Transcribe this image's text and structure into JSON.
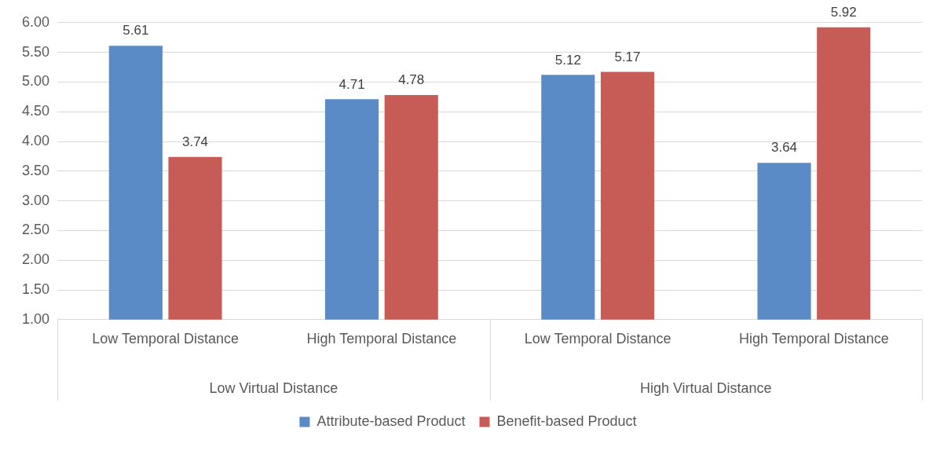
{
  "chart_data": {
    "type": "bar",
    "categories": [
      "Low Temporal Distance",
      "High Temporal Distance",
      "Low Temporal Distance",
      "High Temporal Distance"
    ],
    "annotations": [
      "Low Virtual Distance",
      "High Virtual Distance"
    ],
    "series": [
      {
        "name": "Attribute-based Product",
        "color": "#5b8bc6",
        "values": [
          5.61,
          4.71,
          5.12,
          3.64
        ]
      },
      {
        "name": "Benefit-based Product",
        "color": "#c75b56",
        "values": [
          3.74,
          4.78,
          5.17,
          5.92
        ]
      }
    ],
    "ylim": [
      1,
      6
    ],
    "yticks": [
      {
        "value": 1,
        "label": "1.00"
      },
      {
        "value": 1.5,
        "label": "1.50"
      },
      {
        "value": 2,
        "label": "2.00"
      },
      {
        "value": 2.5,
        "label": "2.50"
      },
      {
        "value": 3,
        "label": "3.00"
      },
      {
        "value": 3.5,
        "label": "3.50"
      },
      {
        "value": 4,
        "label": "4.00"
      },
      {
        "value": 4.5,
        "label": "4.50"
      },
      {
        "value": 5,
        "label": "5.00"
      },
      {
        "value": 5.5,
        "label": "5.50"
      },
      {
        "value": 6,
        "label": "6.00"
      }
    ],
    "grid": "y",
    "legend": "bottom",
    "data_labels": true
  }
}
